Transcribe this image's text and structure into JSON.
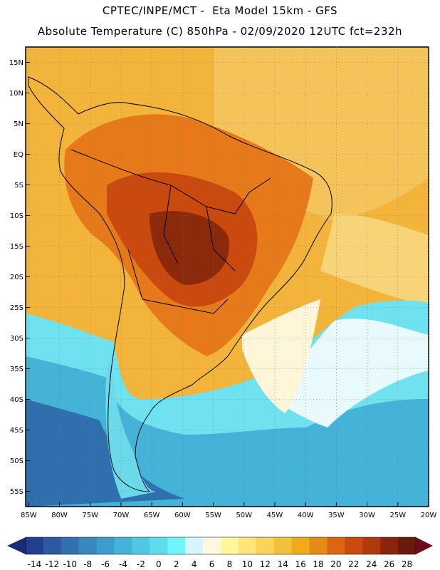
{
  "header": {
    "line1": "CPTEC/INPE/MCT -  Eta Model 15km - GFS",
    "line2": "Absolute Temperature (C) 850hPa - 02/09/2020 12UTC fct=232h"
  },
  "map": {
    "lat_labels": [
      "15N",
      "10N",
      "5N",
      "EQ",
      "5S",
      "10S",
      "15S",
      "20S",
      "25S",
      "30S",
      "35S",
      "40S",
      "45S",
      "50S",
      "55S"
    ],
    "lon_labels": [
      "85W",
      "80W",
      "75W",
      "70W",
      "65W",
      "60W",
      "55W",
      "50W",
      "45W",
      "40W",
      "35W",
      "30W",
      "25W",
      "20W"
    ],
    "lat_range": [
      17.5,
      -57.5
    ],
    "lon_range": [
      -85.5,
      -20
    ]
  },
  "colorbar": {
    "labels": [
      "-14",
      "-12",
      "-10",
      "-8",
      "-6",
      "-4",
      "-2",
      "0",
      "2",
      "4",
      "6",
      "8",
      "10",
      "12",
      "14",
      "16",
      "18",
      "20",
      "22",
      "24",
      "26",
      "28"
    ],
    "colors": [
      "#233d8f",
      "#2c5aa0",
      "#3170b0",
      "#3a86bf",
      "#3e9ccc",
      "#45b2d8",
      "#4ec8e3",
      "#5fdcec",
      "#6ef7fb",
      "#d4f6fb",
      "#fff7e2",
      "#fff79a",
      "#fde577",
      "#f9d45a",
      "#f2c13c",
      "#eeab1a",
      "#e68b16",
      "#db6611",
      "#c94a0e",
      "#b13a0c",
      "#8a240a",
      "#6a1a0c"
    ],
    "left_arrow": "#1a2b7a",
    "right_arrow": "#6a0c1a"
  }
}
